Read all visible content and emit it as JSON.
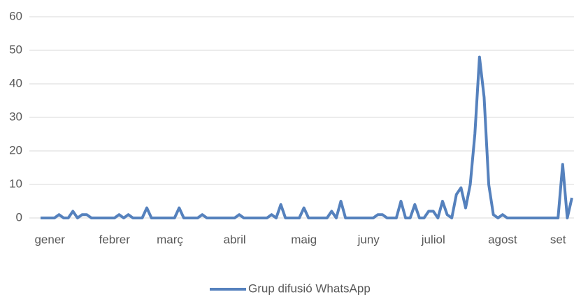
{
  "chart_data": {
    "type": "line",
    "categories": [
      null,
      null,
      "gener",
      null,
      null,
      null,
      null,
      null,
      null,
      null,
      null,
      null,
      null,
      null,
      null,
      null,
      "febrer",
      null,
      null,
      null,
      null,
      null,
      null,
      null,
      null,
      null,
      null,
      null,
      "març",
      null,
      null,
      null,
      null,
      null,
      null,
      null,
      null,
      null,
      null,
      null,
      null,
      null,
      "abril",
      null,
      null,
      null,
      null,
      null,
      null,
      null,
      null,
      null,
      null,
      null,
      null,
      null,
      null,
      "maig",
      null,
      null,
      null,
      null,
      null,
      null,
      null,
      null,
      null,
      null,
      null,
      null,
      null,
      "juny",
      null,
      null,
      null,
      null,
      null,
      null,
      null,
      null,
      null,
      null,
      null,
      null,
      null,
      "juliol",
      null,
      null,
      null,
      null,
      null,
      null,
      null,
      null,
      null,
      null,
      null,
      null,
      null,
      null,
      "agost",
      null,
      null,
      null,
      null,
      null,
      null,
      null,
      null,
      null,
      null,
      null,
      "set",
      null,
      null,
      null
    ],
    "series": [
      {
        "name": "Grup difusió WhatsApp",
        "color": "#5581bd",
        "values": [
          0,
          0,
          0,
          0,
          1,
          0,
          0,
          2,
          0,
          1,
          1,
          0,
          0,
          0,
          0,
          0,
          0,
          1,
          0,
          1,
          0,
          0,
          0,
          3,
          0,
          0,
          0,
          0,
          0,
          0,
          3,
          0,
          0,
          0,
          0,
          1,
          0,
          0,
          0,
          0,
          0,
          0,
          0,
          1,
          0,
          0,
          0,
          0,
          0,
          0,
          1,
          0,
          4,
          0,
          0,
          0,
          0,
          3,
          0,
          0,
          0,
          0,
          0,
          2,
          0,
          5,
          0,
          0,
          0,
          0,
          0,
          0,
          0,
          1,
          1,
          0,
          0,
          0,
          5,
          0,
          0,
          4,
          0,
          0,
          2,
          2,
          0,
          5,
          1,
          0,
          7,
          9,
          3,
          10,
          25,
          48,
          36,
          10,
          1,
          0,
          1,
          0,
          0,
          0,
          0,
          0,
          0,
          0,
          0,
          0,
          0,
          0,
          0,
          16,
          0,
          6
        ]
      }
    ],
    "ylim": [
      0,
      60
    ],
    "yticks": [
      0,
      10,
      20,
      30,
      40,
      50,
      60
    ],
    "grid": true,
    "legend": "bottom"
  }
}
